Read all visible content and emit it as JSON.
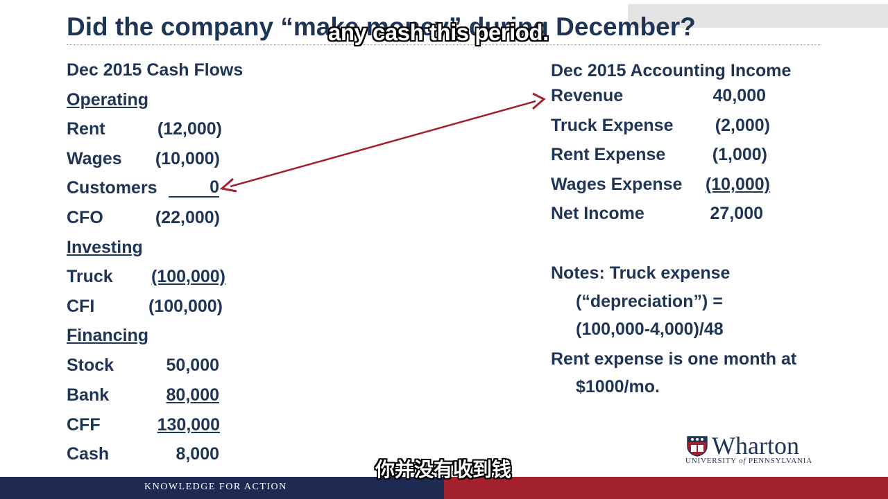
{
  "slide": {
    "title": "Did the company “make money” during December?",
    "subtitle_en": "any cash this period.",
    "subtitle_zh": "你并没有收到钱"
  },
  "cash_flows": {
    "heading": "Dec 2015 Cash Flows",
    "operating": {
      "heading": "Operating",
      "rows": [
        {
          "label": "Rent",
          "value": "(12,000)"
        },
        {
          "label": "Wages",
          "value": "(10,000)"
        },
        {
          "label": "Customers",
          "value": "0"
        },
        {
          "label": "CFO",
          "value": "(22,000)"
        }
      ]
    },
    "investing": {
      "heading": "Investing",
      "rows": [
        {
          "label": "Truck",
          "value": "(100,000)"
        },
        {
          "label": "CFI",
          "value": "(100,000)"
        }
      ]
    },
    "financing": {
      "heading": "Financing",
      "rows": [
        {
          "label": "Stock",
          "value": "50,000"
        },
        {
          "label": "Bank",
          "value": "80,000"
        },
        {
          "label": "CFF",
          "value": "130,000"
        },
        {
          "label": "Cash",
          "value": "8,000"
        }
      ]
    }
  },
  "income": {
    "heading": "Dec 2015 Accounting Income",
    "rows": [
      {
        "label": "Revenue",
        "value": "40,000"
      },
      {
        "label": "Truck Expense",
        "value": "(2,000)"
      },
      {
        "label": "Rent Expense",
        "value": "(1,000)"
      },
      {
        "label": "Wages Expense",
        "value": "(10,000)"
      },
      {
        "label": "Net Income",
        "value": "27,000"
      }
    ]
  },
  "notes": {
    "line1": "Notes: Truck expense",
    "line2": "(“depreciation”) =",
    "line3": "(100,000-4,000)/48",
    "line4": "Rent expense is one month at",
    "line5": "$1000/mo."
  },
  "logo": {
    "name": "Wharton",
    "sub_prefix": "UNIVERSITY",
    "sub_of": "of",
    "sub_suffix": "PENNSYLVANIA"
  },
  "footer": {
    "text": "KNOWLEDGE FOR ACTION"
  },
  "colors": {
    "text": "#1f3556",
    "arrow": "#a3202f",
    "footer_blue": "#1e2a52",
    "footer_red": "#a3202f"
  }
}
